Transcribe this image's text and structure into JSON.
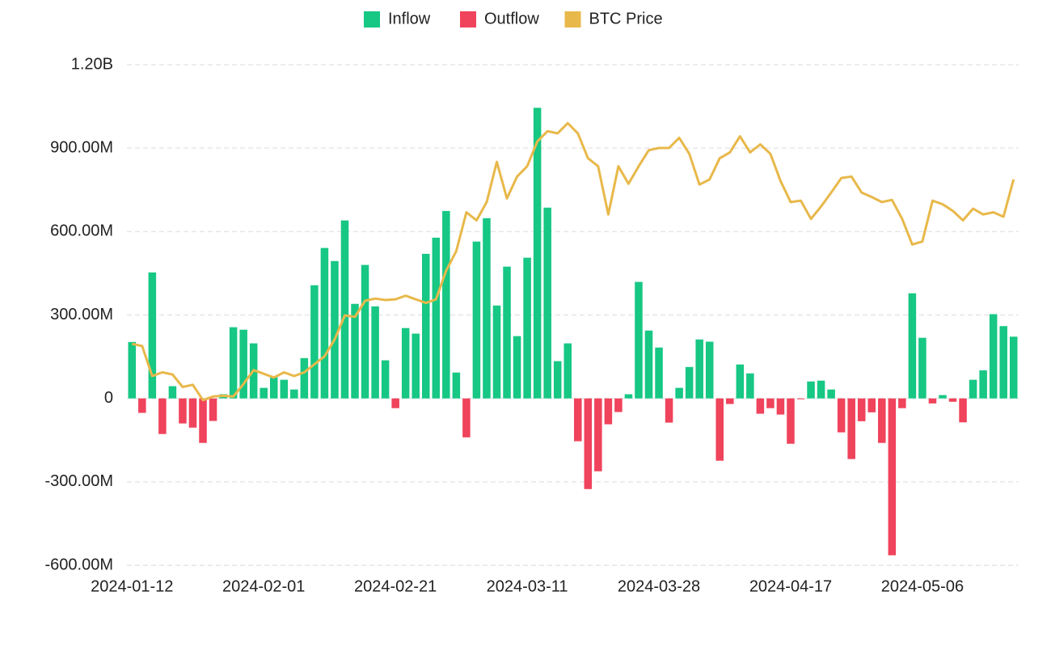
{
  "chart_data": {
    "type": "bar",
    "categories": [
      "2024-01-12",
      null,
      null,
      null,
      null,
      null,
      null,
      null,
      null,
      null,
      null,
      null,
      null,
      "2024-02-01",
      null,
      null,
      null,
      null,
      null,
      null,
      null,
      null,
      null,
      null,
      null,
      null,
      "2024-02-21",
      null,
      null,
      null,
      null,
      null,
      null,
      null,
      null,
      null,
      null,
      null,
      null,
      "2024-03-11",
      null,
      null,
      null,
      null,
      null,
      null,
      null,
      null,
      null,
      null,
      null,
      null,
      "2024-03-28",
      null,
      null,
      null,
      null,
      null,
      null,
      null,
      null,
      null,
      null,
      null,
      null,
      "2024-04-17",
      null,
      null,
      null,
      null,
      null,
      null,
      null,
      null,
      null,
      null,
      null,
      null,
      "2024-05-06",
      null,
      null,
      null,
      null,
      null,
      null,
      null,
      null,
      null
    ],
    "series": [
      {
        "name": "Inflow",
        "color": "#17c784",
        "values": [
          203,
          null,
          453,
          null,
          44,
          null,
          null,
          null,
          null,
          15,
          256,
          247,
          198,
          38,
          76,
          67,
          32,
          145,
          407,
          541,
          494,
          640,
          340,
          480,
          331,
          137,
          null,
          253,
          233,
          520,
          578,
          674,
          93,
          null,
          564,
          648,
          334,
          474,
          224,
          506,
          1045,
          686,
          134,
          198,
          null,
          null,
          null,
          null,
          null,
          15,
          419,
          244,
          183,
          null,
          38,
          113,
          212,
          204,
          null,
          null,
          122,
          90,
          null,
          null,
          null,
          null,
          null,
          61,
          64,
          32,
          null,
          null,
          null,
          null,
          null,
          null,
          null,
          378,
          218,
          null,
          12,
          null,
          null,
          67,
          101,
          303,
          260,
          222
        ]
      },
      {
        "name": "Outflow",
        "color": "#f0435c",
        "values": [
          null,
          -52,
          null,
          -128,
          null,
          -90,
          -105,
          -160,
          -81,
          null,
          null,
          null,
          null,
          null,
          null,
          null,
          null,
          null,
          null,
          null,
          null,
          null,
          null,
          null,
          null,
          null,
          -35,
          null,
          null,
          null,
          null,
          null,
          null,
          -140,
          null,
          null,
          null,
          null,
          null,
          null,
          null,
          null,
          null,
          null,
          -154,
          -326,
          -262,
          -93,
          -49,
          null,
          null,
          null,
          null,
          -87,
          null,
          null,
          null,
          null,
          -224,
          -20,
          null,
          null,
          -55,
          -35,
          -58,
          -163,
          -3,
          null,
          null,
          null,
          -122,
          -218,
          -82,
          -50,
          -160,
          -564,
          -35,
          null,
          null,
          -18,
          null,
          -12,
          -86,
          null,
          null,
          null,
          null,
          null
        ]
      },
      {
        "name": "BTC Price",
        "color": "#e8b84a",
        "type": "line",
        "axis": "y2",
        "values": [
          42800,
          42500,
          38400,
          38900,
          38600,
          36900,
          37200,
          35100,
          35600,
          35700,
          35600,
          37300,
          39200,
          38700,
          38200,
          38900,
          38400,
          38900,
          40000,
          41100,
          43400,
          46700,
          46500,
          48700,
          49000,
          48800,
          48900,
          49400,
          48900,
          48400,
          48900,
          52800,
          55500,
          60800,
          59700,
          62200,
          67700,
          62700,
          65700,
          67100,
          70500,
          71900,
          71600,
          73000,
          71600,
          68200,
          67100,
          60500,
          67100,
          64700,
          67100,
          69300,
          69600,
          69600,
          71000,
          68800,
          64600,
          65300,
          68200,
          69000,
          71200,
          69000,
          70100,
          68800,
          65100,
          62200,
          62400,
          59900,
          61600,
          63500,
          65500,
          65700,
          63500,
          62900,
          62200,
          62500,
          59900,
          56400,
          56800,
          62400,
          61900,
          61000,
          59700,
          61300,
          60500,
          60800,
          60200,
          65300
        ]
      }
    ],
    "ylim": [
      -600,
      1200
    ],
    "yticks": [
      {
        "value": -600,
        "label": "-600.00M"
      },
      {
        "value": -300,
        "label": "-300.00M"
      },
      0,
      {
        "value": 300,
        "label": "300.00M"
      },
      {
        "value": 600,
        "label": "600.00M"
      },
      {
        "value": 900,
        "label": "900.00M"
      },
      {
        "value": 1200,
        "label": "1.20B"
      }
    ],
    "y2lim": [
      12500,
      81000
    ],
    "grid": true,
    "legend": "top"
  }
}
